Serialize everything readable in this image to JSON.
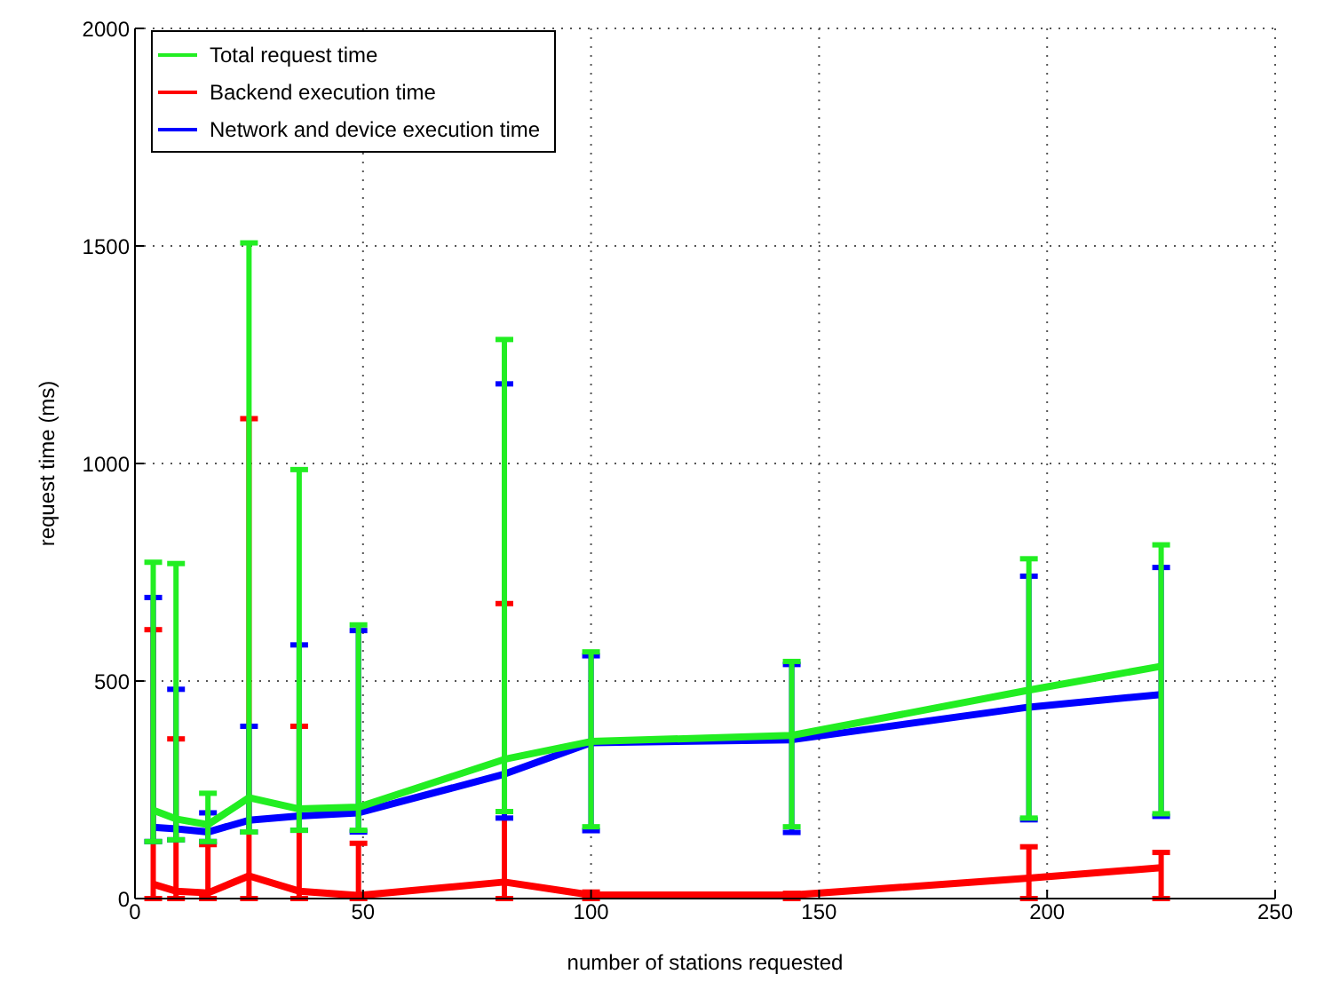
{
  "chart_data": {
    "type": "line",
    "xlabel": "number of stations requested",
    "ylabel": "request time (ms)",
    "x": [
      4,
      9,
      16,
      25,
      36,
      49,
      81,
      100,
      144,
      196,
      225
    ],
    "xlim": [
      0,
      250
    ],
    "xticks": [
      0,
      50,
      100,
      150,
      200,
      250
    ],
    "ylim": [
      0,
      2000
    ],
    "yticks": [
      0,
      500,
      1000,
      1500,
      2000
    ],
    "grid": true,
    "legend": "top left",
    "marker": "none",
    "line_style": "solid",
    "series": [
      {
        "name": "Total request time",
        "color": "#22ee22",
        "values": [
          203,
          183,
          170,
          232,
          206,
          210,
          320,
          361,
          375,
          479,
          534
        ],
        "errors": [
          [
            131,
            773
          ],
          [
            135,
            770
          ],
          [
            131,
            242
          ],
          [
            153,
            1507
          ],
          [
            157,
            986
          ],
          [
            157,
            629
          ],
          [
            200,
            1285
          ],
          [
            165,
            567
          ],
          [
            165,
            545
          ],
          [
            185,
            781
          ],
          [
            195,
            813
          ]
        ]
      },
      {
        "name": "Backend execution time",
        "color": "#ff0000",
        "values": [
          33,
          17,
          13,
          52,
          17,
          7,
          38,
          8,
          8,
          47,
          71
        ],
        "errors": [
          [
            0,
            618
          ],
          [
            0,
            367
          ],
          [
            0,
            124
          ],
          [
            0,
            1103
          ],
          [
            0,
            396
          ],
          [
            0,
            127
          ],
          [
            0,
            678
          ],
          [
            0,
            15
          ],
          [
            0,
            12
          ],
          [
            0,
            119
          ],
          [
            0,
            106
          ]
        ]
      },
      {
        "name": "Network and device execution time",
        "color": "#0000ff",
        "values": [
          164,
          160,
          153,
          180,
          190,
          197,
          286,
          358,
          365,
          440,
          469
        ],
        "errors": [
          [
            131,
            692
          ],
          [
            135,
            481
          ],
          [
            131,
            197
          ],
          [
            153,
            396
          ],
          [
            157,
            583
          ],
          [
            153,
            616
          ],
          [
            185,
            1183
          ],
          [
            156,
            558
          ],
          [
            152,
            538
          ],
          [
            181,
            741
          ],
          [
            189,
            761
          ]
        ]
      }
    ]
  }
}
